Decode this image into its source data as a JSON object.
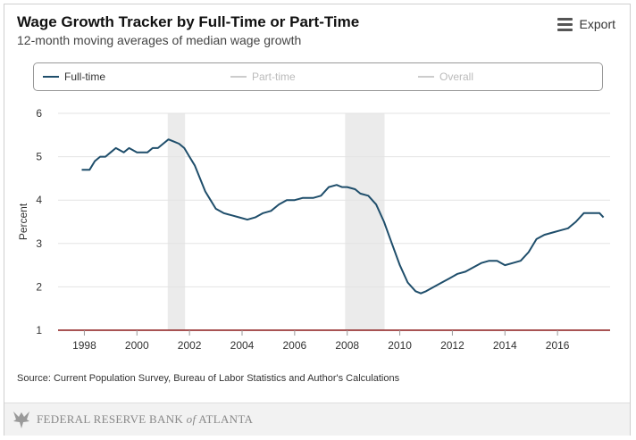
{
  "header": {
    "title": "Wage Growth Tracker by Full-Time or Part-Time",
    "subtitle": "12-month moving averages of median wage growth",
    "export_label": "Export",
    "export_icon": "hamburger-menu-icon"
  },
  "legend": {
    "items": [
      {
        "label": "Full-time",
        "color": "#1f4e6b",
        "active": true
      },
      {
        "label": "Part-time",
        "color": "#cccccc",
        "active": false
      },
      {
        "label": "Overall",
        "color": "#cccccc",
        "active": false
      }
    ]
  },
  "source": "Source: Current Population Survey, Bureau of Labor Statistics and Author's Calculations",
  "footer": {
    "brand_main": "FEDERAL RESERVE BANK",
    "brand_of": "of",
    "brand_city": "ATLANTA",
    "logo_icon": "federal-reserve-eagle-icon"
  },
  "chart_data": {
    "type": "line",
    "title": "Wage Growth Tracker by Full-Time or Part-Time",
    "ylabel": "Percent",
    "xlabel": "",
    "ylim": [
      1,
      6
    ],
    "xlim": [
      1997.0,
      2018.0
    ],
    "yticks": [
      "1",
      "2",
      "3",
      "4",
      "5",
      "6"
    ],
    "xticks": [
      "1998",
      "2000",
      "2002",
      "2004",
      "2006",
      "2008",
      "2010",
      "2012",
      "2014",
      "2016"
    ],
    "grid": true,
    "legend_position": "top",
    "recessions": [
      [
        2001.17,
        2001.83
      ],
      [
        2007.92,
        2009.42
      ]
    ],
    "series": [
      {
        "name": "Full-time",
        "color": "#1f4e6b",
        "x": [
          1997.9,
          1998.2,
          1998.4,
          1998.6,
          1998.8,
          1999.0,
          1999.2,
          1999.5,
          1999.7,
          2000.0,
          2000.2,
          2000.4,
          2000.6,
          2000.8,
          2001.0,
          2001.2,
          2001.4,
          2001.6,
          2001.8,
          2002.0,
          2002.2,
          2002.4,
          2002.6,
          2002.8,
          2003.0,
          2003.3,
          2003.6,
          2003.9,
          2004.2,
          2004.5,
          2004.8,
          2005.1,
          2005.4,
          2005.7,
          2006.0,
          2006.3,
          2006.5,
          2006.7,
          2007.0,
          2007.3,
          2007.6,
          2007.8,
          2008.0,
          2008.3,
          2008.5,
          2008.8,
          2009.1,
          2009.4,
          2009.7,
          2010.0,
          2010.3,
          2010.6,
          2010.8,
          2011.0,
          2011.3,
          2011.6,
          2011.9,
          2012.2,
          2012.5,
          2012.8,
          2013.1,
          2013.4,
          2013.7,
          2014.0,
          2014.3,
          2014.6,
          2014.9,
          2015.2,
          2015.5,
          2015.8,
          2016.1,
          2016.4,
          2016.7,
          2017.0,
          2017.3,
          2017.6,
          2017.75
        ],
        "values": [
          4.7,
          4.7,
          4.9,
          5.0,
          5.0,
          5.1,
          5.2,
          5.1,
          5.2,
          5.1,
          5.1,
          5.1,
          5.2,
          5.2,
          5.3,
          5.4,
          5.35,
          5.3,
          5.2,
          5.0,
          4.8,
          4.5,
          4.2,
          4.0,
          3.8,
          3.7,
          3.65,
          3.6,
          3.55,
          3.6,
          3.7,
          3.75,
          3.9,
          4.0,
          4.0,
          4.05,
          4.05,
          4.05,
          4.1,
          4.3,
          4.35,
          4.3,
          4.3,
          4.25,
          4.15,
          4.1,
          3.9,
          3.5,
          3.0,
          2.5,
          2.1,
          1.9,
          1.85,
          1.9,
          2.0,
          2.1,
          2.2,
          2.3,
          2.35,
          2.45,
          2.55,
          2.6,
          2.6,
          2.5,
          2.55,
          2.6,
          2.8,
          3.1,
          3.2,
          3.25,
          3.3,
          3.35,
          3.5,
          3.7,
          3.7,
          3.7,
          3.6
        ]
      },
      {
        "name": "Part-time",
        "color": "#cccccc",
        "hidden": true,
        "x": [],
        "values": []
      },
      {
        "name": "Overall",
        "color": "#cccccc",
        "hidden": true,
        "x": [],
        "values": []
      }
    ]
  }
}
